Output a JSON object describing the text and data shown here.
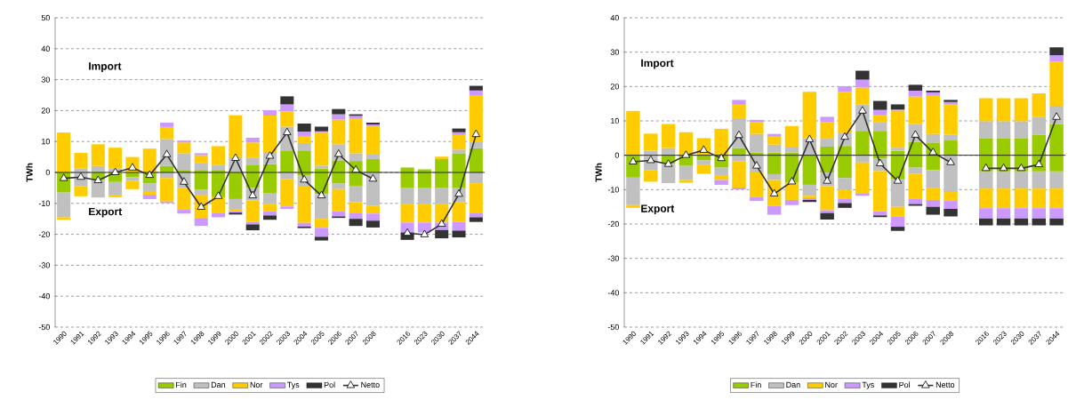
{
  "chart_data": [
    {
      "type": "bar",
      "stacked": true,
      "ylabel": "TWh",
      "categories": [
        "1990",
        "1991",
        "1992",
        "1993",
        "1994",
        "1995",
        "1996",
        "1997",
        "1998",
        "1999",
        "2000",
        "2001",
        "2002",
        "2003",
        "2004",
        "2005",
        "2006",
        "2007",
        "2008",
        null,
        "2016",
        "2023",
        "2030",
        "2037",
        "2044"
      ],
      "ylim": [
        -50,
        50
      ],
      "yticks": [
        -50,
        -40,
        -30,
        -20,
        -10,
        0,
        10,
        20,
        30,
        40,
        50
      ],
      "grid": "y",
      "legend": "bottom",
      "annotations": [
        "Import",
        "Export"
      ],
      "ref_lines": [
        {
          "axis": "y",
          "value": 0
        }
      ],
      "series": [
        {
          "name": "Fin",
          "color": "#99cc00",
          "values": [
            0,
            0,
            0,
            0,
            0,
            0,
            2.1,
            0.8,
            0.8,
            0.8,
            0,
            2.5,
            2.7,
            7.1,
            7.1,
            1.3,
            3.9,
            3.7,
            4.3,
            null,
            1.6,
            1.0,
            4.3,
            6.2,
            7.8
          ]
        },
        {
          "name": "Dan",
          "color": "#c0c0c0",
          "values": [
            0,
            1.3,
            2.1,
            1.3,
            null,
            0,
            8.7,
            5.4,
            2.3,
            1.7,
            4.9,
            2.3,
            3.9,
            7.7,
            2.4,
            0.9,
            5.2,
            2.5,
            1.7,
            null,
            0,
            0,
            0,
            1.2,
            2.0
          ]
        },
        {
          "name": "Nor",
          "color": "#ffcc00",
          "values": [
            12.9,
            5.0,
            7.0,
            6.7,
            5.0,
            7.7,
            3.9,
            3.5,
            2.5,
            6.0,
            13.6,
            4.9,
            11.8,
            4.9,
            2.3,
            10.8,
            8.0,
            11.1,
            8.9,
            null,
            0,
            0,
            0.8,
            4.7,
            15.2
          ]
        },
        {
          "name": "Tys",
          "color": "#cc99ff",
          "values": [
            0,
            0,
            0,
            0,
            0,
            0,
            1.4,
            0.6,
            0.6,
            0,
            0,
            1.5,
            1.7,
            2.3,
            1.4,
            0.3,
            1.7,
            1.0,
            0.6,
            null,
            0,
            0,
            0,
            0.9,
            1.5
          ]
        },
        {
          "name": "Pol",
          "color": "#333333",
          "values": [
            0,
            0,
            0,
            0,
            0,
            0,
            0,
            0,
            0,
            0,
            0,
            0,
            0,
            2.6,
            2.6,
            1.5,
            1.7,
            0.5,
            0.6,
            null,
            0,
            0,
            0,
            1.2,
            1.5
          ]
        },
        {
          "color": "#99cc00",
          "values": [
            -6.5,
            0,
            -2.5,
            -3.1,
            -1.5,
            -3.6,
            0,
            0,
            -5.5,
            -8.0,
            -8.6,
            -5.0,
            -6.6,
            0,
            -1.0,
            -7.0,
            -3.6,
            -4.3,
            0,
            null,
            -4.9,
            -4.9,
            -4.9,
            -4.9,
            0
          ]
        },
        {
          "color": "#c0c0c0",
          "values": [
            -8.0,
            -4.4,
            -5.6,
            -4.1,
            -1.2,
            -2.4,
            -1.8,
            -5.0,
            -1.7,
            null,
            -3.2,
            -4.0,
            -3.5,
            -2.1,
            -3.6,
            -8.0,
            -1.8,
            -5.3,
            -10.7,
            null,
            -5.2,
            -5.2,
            -5.2,
            -4.8,
            -3.5
          ]
        },
        {
          "color": "#ffcc00",
          "values": [
            -0.8,
            -3.3,
            0,
            -0.8,
            -2.7,
            -1.2,
            -7.6,
            -7.1,
            -7.5,
            -5.0,
            -0.7,
            -7.0,
            -2.5,
            -8.9,
            -11.7,
            -2.9,
            -7.2,
            -3.4,
            -2.6,
            null,
            -6.1,
            -6.1,
            -6.1,
            -6.3,
            -9.5
          ]
        },
        {
          "color": "#cc99ff",
          "values": [
            0,
            0,
            0,
            0,
            0,
            -1.4,
            -0.5,
            -1.2,
            -2.6,
            -1.5,
            -0.5,
            -0.8,
            -1.3,
            -0.8,
            -1.2,
            -2.9,
            -1.6,
            -2.0,
            -2.3,
            null,
            -3.2,
            -3.2,
            -2.4,
            -2.8,
            -1.5
          ]
        },
        {
          "color": "#333333",
          "values": [
            0,
            0,
            0,
            0,
            0,
            0,
            0,
            0,
            0,
            0,
            -0.6,
            -1.9,
            -1.4,
            0,
            -0.5,
            -1.2,
            -0.5,
            -2.3,
            -2.2,
            null,
            -2.4,
            null,
            -2.7,
            -2.2,
            -1.5
          ]
        },
        {
          "name": "Netto",
          "type": "line",
          "marker": "triangle",
          "color": "#333333",
          "values": [
            -1.9,
            -1.5,
            -2.6,
            0,
            1.5,
            -0.9,
            5.8,
            -3.1,
            -11.2,
            -7.7,
            4.6,
            -7.5,
            5.3,
            12.9,
            -2.4,
            -7.5,
            5.9,
            0.8,
            -2.1,
            null,
            -19.6,
            -20.1,
            -16.7,
            -7.0,
            12.3
          ]
        }
      ]
    },
    {
      "type": "bar",
      "stacked": true,
      "ylabel": "TWh",
      "categories": [
        "1990",
        "1991",
        "1992",
        "1993",
        "1994",
        "1995",
        "1996",
        "1997",
        "1998",
        "1999",
        "2000",
        "2001",
        "2002",
        "2003",
        "2004",
        "2005",
        "2006",
        "2007",
        "2008",
        null,
        "2016",
        "2023",
        "2030",
        "2037",
        "2044"
      ],
      "ylim": [
        -50,
        40
      ],
      "yticks": [
        -50,
        -40,
        -30,
        -20,
        -10,
        0,
        10,
        20,
        30,
        40
      ],
      "grid": "y",
      "legend": "bottom",
      "annotations": [
        "Import",
        "Export"
      ],
      "ref_lines": [
        {
          "axis": "y",
          "value": 0
        }
      ],
      "series": [
        {
          "name": "Fin",
          "color": "#99cc00",
          "values": [
            0,
            0,
            0,
            0,
            0,
            0,
            2.1,
            0.8,
            0.8,
            0.8,
            0,
            2.5,
            2.7,
            7.1,
            7.1,
            1.3,
            3.9,
            3.7,
            4.3,
            null,
            5.0,
            5.0,
            5.0,
            6.0,
            9.0
          ]
        },
        {
          "name": "Dan",
          "color": "#c0c0c0",
          "values": [
            0,
            1.3,
            2.1,
            null,
            null,
            0,
            8.7,
            5.4,
            2.3,
            1.7,
            4.9,
            2.3,
            3.9,
            7.7,
            2.4,
            0.9,
            5.2,
            2.5,
            1.7,
            null,
            4.9,
            4.9,
            4.9,
            5.1,
            5.4
          ]
        },
        {
          "name": "Nor",
          "color": "#ffcc00",
          "values": [
            12.9,
            5.0,
            7.0,
            6.7,
            5.0,
            7.7,
            3.9,
            3.5,
            2.5,
            6.0,
            13.6,
            4.9,
            11.8,
            4.9,
            2.3,
            10.8,
            8.0,
            11.1,
            8.9,
            null,
            6.7,
            6.7,
            6.7,
            6.9,
            12.8
          ]
        },
        {
          "name": "Tys",
          "color": "#cc99ff",
          "values": [
            0,
            0,
            0,
            0,
            0,
            0,
            1.4,
            0.6,
            0.6,
            0,
            0,
            1.5,
            1.7,
            2.3,
            1.4,
            0.3,
            1.7,
            1.0,
            0.6,
            null,
            0,
            0,
            0,
            0,
            1.9
          ]
        },
        {
          "name": "Pol",
          "color": "#333333",
          "values": [
            0,
            0,
            0,
            0,
            0,
            0,
            0,
            0,
            0,
            0,
            0,
            0,
            0,
            2.6,
            2.6,
            1.5,
            1.7,
            0.5,
            0.6,
            null,
            0,
            0,
            0,
            0,
            2.3
          ]
        },
        {
          "color": "#99cc00",
          "values": [
            -6.5,
            0,
            -2.5,
            -3.1,
            -1.5,
            -3.6,
            0,
            0,
            -5.5,
            -8.0,
            -8.6,
            -5.0,
            -6.6,
            0,
            -1.0,
            -7.0,
            -3.6,
            -4.3,
            0,
            null,
            -4.7,
            -4.7,
            -4.7,
            -4.7,
            -4.7
          ]
        },
        {
          "color": "#c0c0c0",
          "values": [
            -8.0,
            -4.4,
            -5.6,
            -4.1,
            -1.2,
            -2.4,
            -1.8,
            -5.0,
            -1.7,
            null,
            -3.2,
            -4.0,
            -3.5,
            -2.1,
            -3.6,
            -8.0,
            -1.8,
            -5.3,
            -10.7,
            null,
            -5.0,
            -5.0,
            -5.0,
            -5.0,
            -5.0
          ]
        },
        {
          "color": "#ffcc00",
          "values": [
            -0.8,
            -3.3,
            0,
            -0.8,
            -2.7,
            -1.2,
            -7.6,
            -7.1,
            -7.5,
            -5.0,
            -0.7,
            -7.0,
            -2.5,
            -8.9,
            -11.7,
            -2.9,
            -7.2,
            -3.4,
            -2.6,
            null,
            -5.7,
            -5.7,
            -5.7,
            -5.7,
            -5.7
          ]
        },
        {
          "color": "#cc99ff",
          "values": [
            0,
            0,
            0,
            0,
            0,
            -1.4,
            -0.5,
            -1.2,
            -2.6,
            -1.5,
            -0.5,
            -0.8,
            -1.3,
            -0.8,
            -1.2,
            -2.9,
            -1.6,
            -2.0,
            -2.3,
            null,
            -3.0,
            -3.0,
            -3.0,
            -3.0,
            -3.0
          ]
        },
        {
          "color": "#333333",
          "values": [
            0,
            0,
            0,
            0,
            0,
            0,
            0,
            0,
            0,
            0,
            -0.6,
            -1.9,
            -1.4,
            0,
            -0.5,
            -1.2,
            -0.5,
            -2.3,
            -2.2,
            null,
            -2.0,
            -2.0,
            -2.0,
            -2.0,
            -2.0
          ]
        },
        {
          "name": "Netto",
          "type": "line",
          "marker": "triangle",
          "color": "#333333",
          "values": [
            -1.9,
            -1.5,
            -2.6,
            0,
            1.5,
            -0.9,
            5.8,
            -3.1,
            -11.2,
            -7.7,
            4.6,
            -7.5,
            5.3,
            12.9,
            -2.4,
            -7.5,
            5.9,
            0.8,
            -2.1,
            null,
            -3.8,
            -3.8,
            -3.8,
            -2.7,
            11.1
          ]
        }
      ]
    }
  ]
}
